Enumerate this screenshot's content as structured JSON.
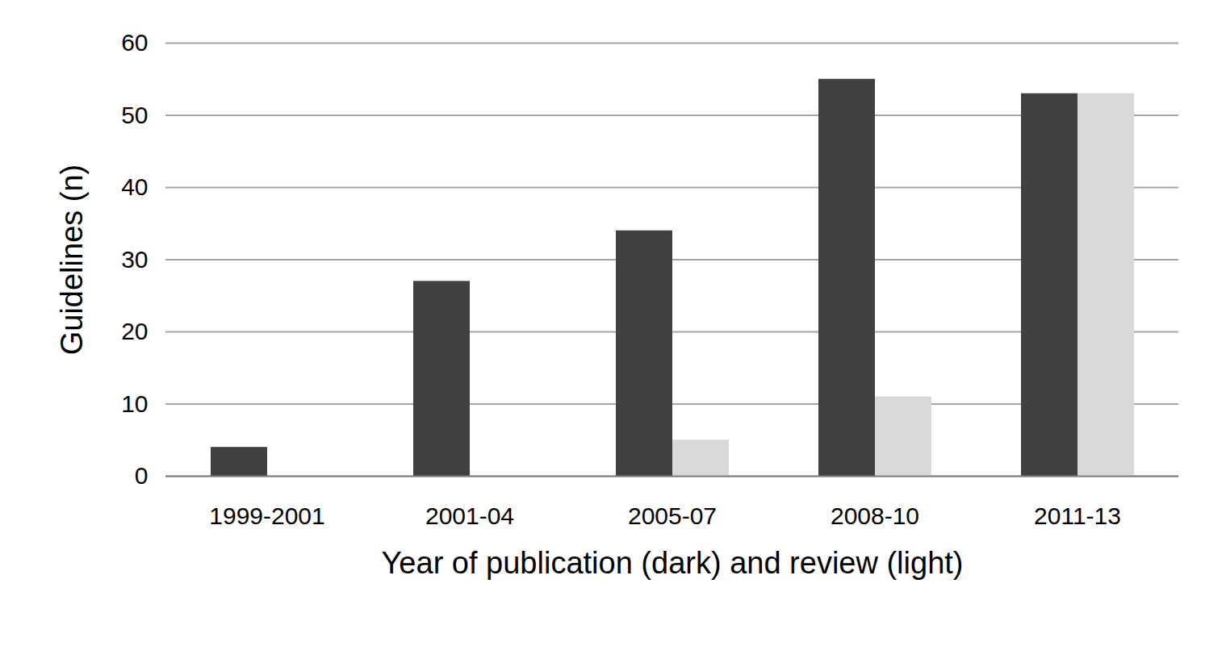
{
  "chart_data": {
    "type": "bar",
    "x_label": "Year of publication (dark) and review (light)",
    "y_label": "Guidelines (n)",
    "categories": [
      "1999-2001",
      "2001-04",
      "2005-07",
      "2008-10",
      "2011-13"
    ],
    "series": [
      {
        "name": "publication",
        "color": "#404040",
        "values": [
          4,
          27,
          34,
          55,
          53
        ]
      },
      {
        "name": "review",
        "color": "#d9d9d9",
        "values": [
          0,
          0,
          5,
          11,
          53
        ]
      }
    ],
    "ylim": [
      0,
      60
    ],
    "yticks": [
      0,
      10,
      20,
      30,
      40,
      50,
      60
    ],
    "grid": true
  }
}
